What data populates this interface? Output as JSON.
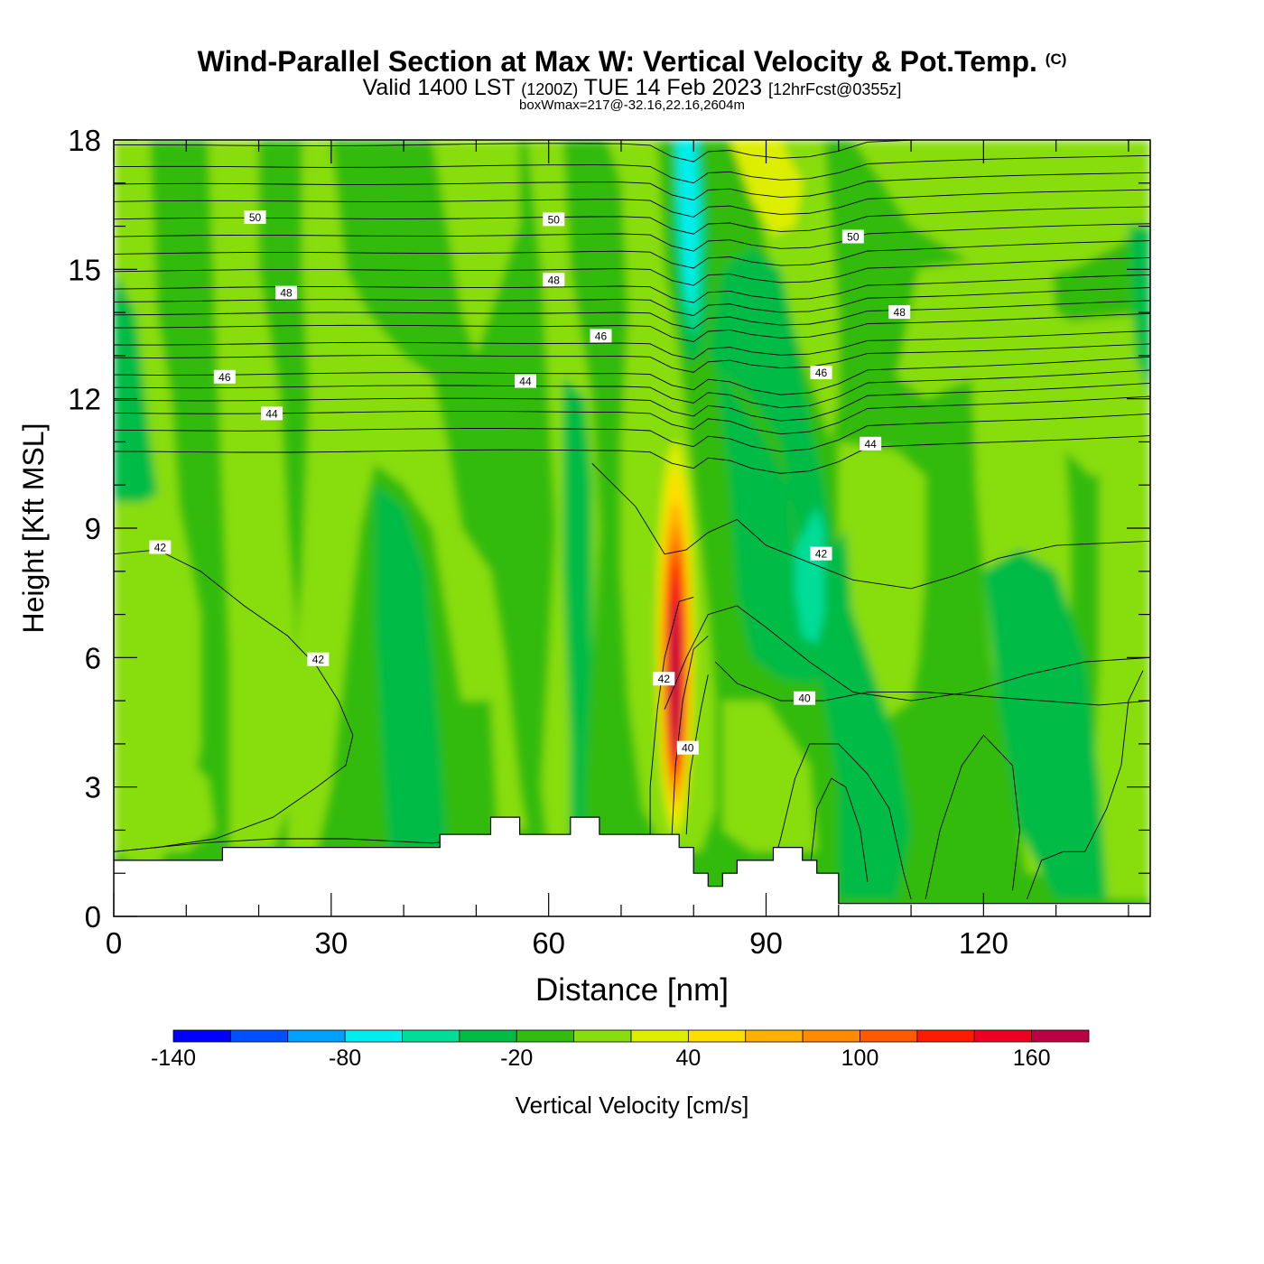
{
  "header": {
    "title": "Wind-Parallel Section at Max W: Vertical Velocity & Pot.Temp.",
    "copyright": "(C)",
    "valid_prefix": "Valid 1400 LST",
    "valid_z": "(1200Z)",
    "valid_date": "TUE 14 Feb 2023",
    "forecast": "[12hrFcst@0355z]",
    "box_info": "boxWmax=217@-32.16,22.16,2604m"
  },
  "chart_data": {
    "type": "contour-section",
    "title": "Wind-Parallel Section at Max W: Vertical Velocity & Pot.Temp.",
    "xlabel": "Distance [nm]",
    "ylabel": "Height [Kft MSL]",
    "xlim": [
      0,
      143
    ],
    "ylim": [
      0,
      18
    ],
    "x_ticks": [
      0,
      30,
      60,
      90,
      120
    ],
    "y_ticks": [
      0,
      3,
      6,
      9,
      12,
      15,
      18
    ],
    "colorbar": {
      "label": "Vertical Velocity [cm/s]",
      "min": -140,
      "max": 180,
      "step": 20,
      "tick_labels": [
        -140,
        -80,
        -20,
        40,
        100,
        160
      ],
      "colors": [
        "#0000ff",
        "#0050ff",
        "#00a0ff",
        "#00eeee",
        "#00dd99",
        "#00bb44",
        "#33bb11",
        "#88dd11",
        "#ddee00",
        "#ffdd00",
        "#ffb000",
        "#ff8c00",
        "#ff5a00",
        "#ff1a00",
        "#ee0022",
        "#bb0044"
      ]
    },
    "terrain_kft": [
      [
        0,
        1.3
      ],
      [
        15,
        1.3
      ],
      [
        15,
        1.6
      ],
      [
        45,
        1.6
      ],
      [
        45,
        1.9
      ],
      [
        52,
        1.9
      ],
      [
        52,
        2.3
      ],
      [
        56,
        2.3
      ],
      [
        56,
        1.9
      ],
      [
        63,
        1.9
      ],
      [
        63,
        2.3
      ],
      [
        67,
        2.3
      ],
      [
        67,
        1.9
      ],
      [
        78,
        1.9
      ],
      [
        78,
        1.6
      ],
      [
        80,
        1.6
      ],
      [
        80,
        1.0
      ],
      [
        82,
        1.0
      ],
      [
        82,
        0.7
      ],
      [
        84,
        0.7
      ],
      [
        84,
        1.0
      ],
      [
        86,
        1.0
      ],
      [
        86,
        1.3
      ],
      [
        91,
        1.3
      ],
      [
        91,
        1.6
      ],
      [
        95,
        1.6
      ],
      [
        95,
        1.3
      ],
      [
        97,
        1.3
      ],
      [
        97,
        1.0
      ],
      [
        100,
        1.0
      ],
      [
        100,
        0.3
      ],
      [
        143,
        0.3
      ]
    ],
    "theta_labels": [
      {
        "text": "50",
        "x": 19.5,
        "y": 16.2
      },
      {
        "text": "50",
        "x": 60.7,
        "y": 16.15
      },
      {
        "text": "50",
        "x": 102,
        "y": 15.75
      },
      {
        "text": "48",
        "x": 23.8,
        "y": 14.45
      },
      {
        "text": "48",
        "x": 60.7,
        "y": 14.75
      },
      {
        "text": "48",
        "x": 108.4,
        "y": 14.0
      },
      {
        "text": "46",
        "x": 15.3,
        "y": 12.5
      },
      {
        "text": "46",
        "x": 67.2,
        "y": 13.45
      },
      {
        "text": "46",
        "x": 97.6,
        "y": 12.6
      },
      {
        "text": "44",
        "x": 21.8,
        "y": 11.65
      },
      {
        "text": "44",
        "x": 56.8,
        "y": 12.4
      },
      {
        "text": "44",
        "x": 104.4,
        "y": 10.95
      },
      {
        "text": "42",
        "x": 6.4,
        "y": 8.55
      },
      {
        "text": "42",
        "x": 28.2,
        "y": 5.95
      },
      {
        "text": "42",
        "x": 75.9,
        "y": 5.5
      },
      {
        "text": "42",
        "x": 97.6,
        "y": 8.4
      },
      {
        "text": "40",
        "x": 79.2,
        "y": 3.9
      },
      {
        "text": "40",
        "x": 95.3,
        "y": 5.05
      }
    ],
    "max_w": {
      "value": 217,
      "x": 77.5,
      "y": 6.5
    }
  }
}
